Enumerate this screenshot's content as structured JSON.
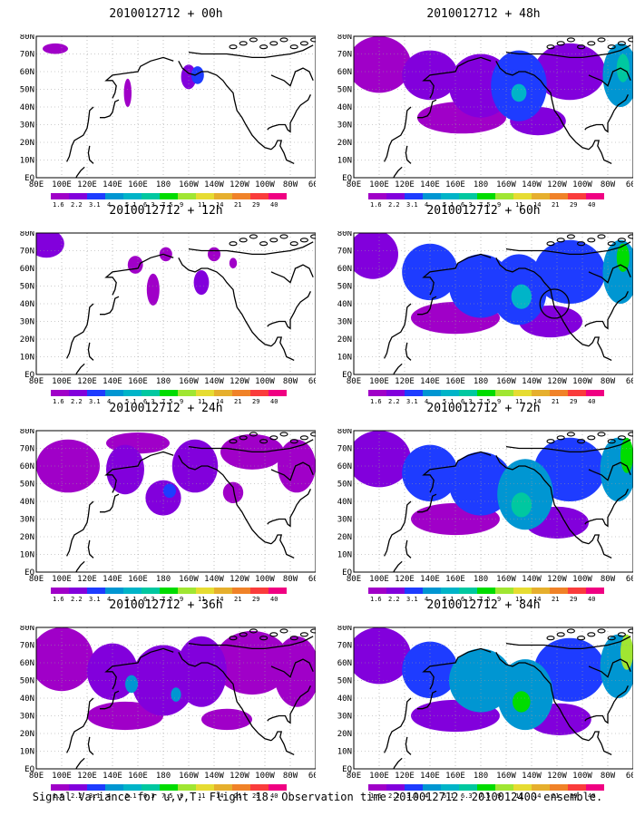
{
  "caption": "Signal Variance for u,v,T. Flight 18. Observation time 2010012712. 2010012400 ensemble.",
  "colorbar": {
    "labels": [
      "1.6",
      "2.2",
      "3.1",
      "4",
      "5.1",
      "6.3",
      "7.5",
      "9",
      "11",
      "14",
      "21",
      "29",
      "40"
    ],
    "colors": [
      "#a000c8",
      "#8200dc",
      "#1e3cff",
      "#0096d2",
      "#00b4c8",
      "#00c8a0",
      "#00dc00",
      "#a0e632",
      "#e6dc32",
      "#e6af2d",
      "#f08228",
      "#fa3c3c",
      "#f00082"
    ]
  },
  "axes": {
    "x_ticks": [
      "80E",
      "100E",
      "120E",
      "140E",
      "160E",
      "180",
      "160W",
      "140W",
      "120W",
      "100W",
      "80W",
      "60W"
    ],
    "y_ticks": [
      "EQ",
      "10N",
      "20N",
      "30N",
      "40N",
      "50N",
      "60N",
      "70N",
      "80N"
    ]
  },
  "chart_data": [
    {
      "type": "heatmap",
      "title": "2010012712 + 00h",
      "forecast_hour": 0,
      "max_level": 3,
      "blobs": [
        {
          "lon": -160,
          "lat": 57,
          "rx": 6,
          "ry": 7,
          "level": 1
        },
        {
          "lon": 95,
          "lat": 73,
          "rx": 10,
          "ry": 3,
          "level": 0
        },
        {
          "lon": 152,
          "lat": 48,
          "rx": 3,
          "ry": 8,
          "level": 0
        },
        {
          "lon": -153,
          "lat": 58,
          "rx": 5,
          "ry": 5,
          "level": 2
        }
      ],
      "circle": null
    },
    {
      "type": "heatmap",
      "title": "2010012712 + 12h",
      "forecast_hour": 12,
      "max_level": 3,
      "blobs": [
        {
          "lon": 88,
          "lat": 74,
          "rx": 14,
          "ry": 8,
          "level": 1
        },
        {
          "lon": 158,
          "lat": 62,
          "rx": 6,
          "ry": 5,
          "level": 0
        },
        {
          "lon": 172,
          "lat": 48,
          "rx": 5,
          "ry": 9,
          "level": 0
        },
        {
          "lon": -178,
          "lat": 68,
          "rx": 5,
          "ry": 4,
          "level": 0
        },
        {
          "lon": -150,
          "lat": 52,
          "rx": 6,
          "ry": 7,
          "level": 1
        },
        {
          "lon": -125,
          "lat": 63,
          "rx": 3,
          "ry": 3,
          "level": 0
        },
        {
          "lon": -140,
          "lat": 68,
          "rx": 5,
          "ry": 4,
          "level": 0
        }
      ],
      "circle": null
    },
    {
      "type": "heatmap",
      "title": "2010012712 + 24h",
      "forecast_hour": 24,
      "max_level": 3,
      "blobs": [
        {
          "lon": 105,
          "lat": 60,
          "rx": 25,
          "ry": 15,
          "level": 0
        },
        {
          "lon": 150,
          "lat": 58,
          "rx": 15,
          "ry": 14,
          "level": 1
        },
        {
          "lon": 180,
          "lat": 42,
          "rx": 14,
          "ry": 10,
          "level": 1
        },
        {
          "lon": -155,
          "lat": 60,
          "rx": 18,
          "ry": 15,
          "level": 1
        },
        {
          "lon": -110,
          "lat": 68,
          "rx": 25,
          "ry": 10,
          "level": 0
        },
        {
          "lon": -75,
          "lat": 60,
          "rx": 15,
          "ry": 15,
          "level": 0
        },
        {
          "lon": -125,
          "lat": 45,
          "rx": 8,
          "ry": 6,
          "level": 0
        },
        {
          "lon": 160,
          "lat": 73,
          "rx": 25,
          "ry": 6,
          "level": 0
        },
        {
          "lon": -175,
          "lat": 46,
          "rx": 5,
          "ry": 4,
          "level": 2
        }
      ],
      "circle": null
    },
    {
      "type": "heatmap",
      "title": "2010012712 + 36h",
      "forecast_hour": 36,
      "max_level": 3,
      "blobs": [
        {
          "lon": 100,
          "lat": 62,
          "rx": 25,
          "ry": 18,
          "level": 0
        },
        {
          "lon": 140,
          "lat": 55,
          "rx": 20,
          "ry": 16,
          "level": 1
        },
        {
          "lon": 180,
          "lat": 50,
          "rx": 25,
          "ry": 20,
          "level": 1
        },
        {
          "lon": -150,
          "lat": 55,
          "rx": 20,
          "ry": 20,
          "level": 1
        },
        {
          "lon": -110,
          "lat": 60,
          "rx": 30,
          "ry": 18,
          "level": 0
        },
        {
          "lon": -75,
          "lat": 55,
          "rx": 18,
          "ry": 20,
          "level": 0
        },
        {
          "lon": 150,
          "lat": 30,
          "rx": 30,
          "ry": 8,
          "level": 0
        },
        {
          "lon": -130,
          "lat": 28,
          "rx": 20,
          "ry": 6,
          "level": 0
        },
        {
          "lon": 155,
          "lat": 48,
          "rx": 5,
          "ry": 5,
          "level": 3
        },
        {
          "lon": -170,
          "lat": 42,
          "rx": 4,
          "ry": 4,
          "level": 3
        }
      ],
      "circle": null
    },
    {
      "type": "heatmap",
      "title": "2010012712 + 48h",
      "forecast_hour": 48,
      "max_level": 5,
      "blobs": [
        {
          "lon": 100,
          "lat": 64,
          "rx": 25,
          "ry": 16,
          "level": 0
        },
        {
          "lon": 140,
          "lat": 58,
          "rx": 22,
          "ry": 14,
          "level": 1
        },
        {
          "lon": 180,
          "lat": 52,
          "rx": 25,
          "ry": 18,
          "level": 1
        },
        {
          "lon": -150,
          "lat": 52,
          "rx": 22,
          "ry": 20,
          "level": 2
        },
        {
          "lon": -110,
          "lat": 60,
          "rx": 28,
          "ry": 16,
          "level": 1
        },
        {
          "lon": -70,
          "lat": 58,
          "rx": 14,
          "ry": 18,
          "level": 3
        },
        {
          "lon": 165,
          "lat": 34,
          "rx": 35,
          "ry": 9,
          "level": 0
        },
        {
          "lon": -135,
          "lat": 32,
          "rx": 22,
          "ry": 8,
          "level": 1
        },
        {
          "lon": -150,
          "lat": 48,
          "rx": 6,
          "ry": 5,
          "level": 4
        },
        {
          "lon": -68,
          "lat": 62,
          "rx": 5,
          "ry": 8,
          "level": 5
        }
      ],
      "circle": null
    },
    {
      "type": "heatmap",
      "title": "2010012712 + 60h",
      "forecast_hour": 60,
      "max_level": 6,
      "blobs": [
        {
          "lon": 95,
          "lat": 68,
          "rx": 20,
          "ry": 14,
          "level": 1
        },
        {
          "lon": 140,
          "lat": 58,
          "rx": 22,
          "ry": 16,
          "level": 2
        },
        {
          "lon": 180,
          "lat": 50,
          "rx": 25,
          "ry": 18,
          "level": 2
        },
        {
          "lon": -150,
          "lat": 48,
          "rx": 22,
          "ry": 20,
          "level": 2
        },
        {
          "lon": -110,
          "lat": 58,
          "rx": 28,
          "ry": 18,
          "level": 2
        },
        {
          "lon": -70,
          "lat": 58,
          "rx": 14,
          "ry": 18,
          "level": 3
        },
        {
          "lon": 160,
          "lat": 32,
          "rx": 35,
          "ry": 9,
          "level": 0
        },
        {
          "lon": -125,
          "lat": 30,
          "rx": 25,
          "ry": 9,
          "level": 1
        },
        {
          "lon": -148,
          "lat": 44,
          "rx": 8,
          "ry": 7,
          "level": 4
        },
        {
          "lon": -68,
          "lat": 66,
          "rx": 5,
          "ry": 8,
          "level": 6
        }
      ],
      "circle": {
        "lon": -122,
        "lat": 40
      }
    },
    {
      "type": "heatmap",
      "title": "2010012712 + 72h",
      "forecast_hour": 72,
      "max_level": 6,
      "blobs": [
        {
          "lon": 100,
          "lat": 64,
          "rx": 25,
          "ry": 16,
          "level": 1
        },
        {
          "lon": 140,
          "lat": 56,
          "rx": 22,
          "ry": 16,
          "level": 2
        },
        {
          "lon": 180,
          "lat": 50,
          "rx": 25,
          "ry": 18,
          "level": 2
        },
        {
          "lon": -145,
          "lat": 44,
          "rx": 22,
          "ry": 20,
          "level": 3
        },
        {
          "lon": -110,
          "lat": 58,
          "rx": 28,
          "ry": 18,
          "level": 2
        },
        {
          "lon": -72,
          "lat": 58,
          "rx": 14,
          "ry": 18,
          "level": 3
        },
        {
          "lon": 160,
          "lat": 30,
          "rx": 35,
          "ry": 9,
          "level": 0
        },
        {
          "lon": -120,
          "lat": 28,
          "rx": 25,
          "ry": 9,
          "level": 1
        },
        {
          "lon": -148,
          "lat": 38,
          "rx": 8,
          "ry": 7,
          "level": 5
        },
        {
          "lon": -65,
          "lat": 66,
          "rx": 5,
          "ry": 10,
          "level": 6
        }
      ],
      "circle": null
    },
    {
      "type": "heatmap",
      "title": "2010012712 + 84h",
      "forecast_hour": 84,
      "max_level": 7,
      "blobs": [
        {
          "lon": 100,
          "lat": 64,
          "rx": 25,
          "ry": 16,
          "level": 1
        },
        {
          "lon": 140,
          "lat": 56,
          "rx": 22,
          "ry": 16,
          "level": 2
        },
        {
          "lon": 180,
          "lat": 50,
          "rx": 25,
          "ry": 18,
          "level": 3
        },
        {
          "lon": -145,
          "lat": 42,
          "rx": 22,
          "ry": 20,
          "level": 3
        },
        {
          "lon": -110,
          "lat": 56,
          "rx": 28,
          "ry": 18,
          "level": 2
        },
        {
          "lon": -72,
          "lat": 58,
          "rx": 14,
          "ry": 18,
          "level": 3
        },
        {
          "lon": 160,
          "lat": 30,
          "rx": 35,
          "ry": 9,
          "level": 1
        },
        {
          "lon": -118,
          "lat": 28,
          "rx": 25,
          "ry": 9,
          "level": 1
        },
        {
          "lon": -148,
          "lat": 38,
          "rx": 7,
          "ry": 6,
          "level": 6
        },
        {
          "lon": -65,
          "lat": 66,
          "rx": 5,
          "ry": 10,
          "level": 7
        }
      ],
      "circle": null
    }
  ]
}
